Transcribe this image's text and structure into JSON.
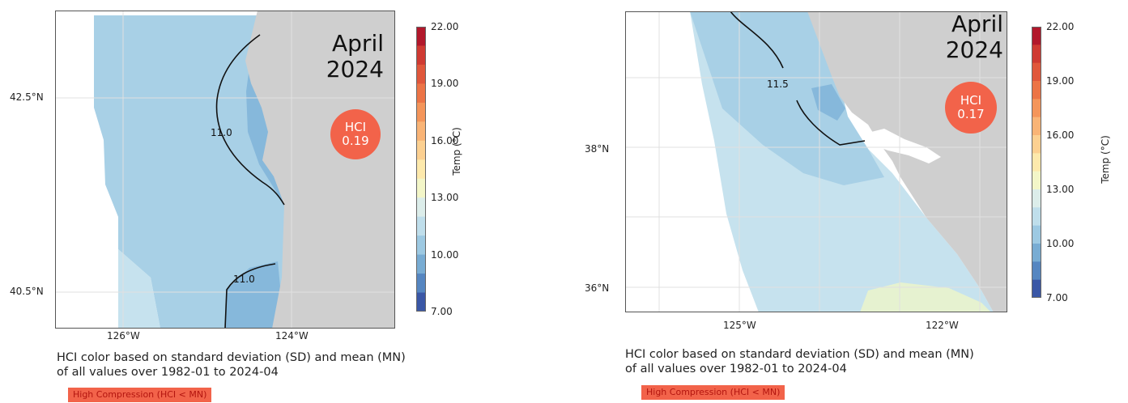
{
  "left_panel": {
    "month": "April",
    "year": "2024",
    "hci_label": "HCI",
    "hci_value": "0.19",
    "lat_labels": [
      "42.5°N",
      "40.5°N"
    ],
    "lon_labels": [
      "126°W",
      "124°W"
    ],
    "contour_labels": [
      "11.0",
      "11.0"
    ],
    "colorbar": {
      "title": "Temp (°C)",
      "ticks": [
        "22.00",
        "19.00",
        "16.00",
        "13.00",
        "10.00",
        "7.00"
      ],
      "min": 7,
      "max": 22
    },
    "caption_line1": "HCI color based on standard deviation (SD) and mean (MN)",
    "caption_line2": "of all values over 1982-01 to 2024-04",
    "legend_label": "High Compression (HCI < MN)"
  },
  "right_panel": {
    "month": "April",
    "year": "2024",
    "hci_label": "HCI",
    "hci_value": "0.17",
    "lat_labels": [
      "38°N",
      "36°N"
    ],
    "lon_labels": [
      "125°W",
      "122°W"
    ],
    "contour_labels": [
      "11.5"
    ],
    "colorbar": {
      "title": "Temp (°C)",
      "ticks": [
        "22.00",
        "19.00",
        "16.00",
        "13.00",
        "10.00",
        "7.00"
      ],
      "min": 7,
      "max": 22
    },
    "caption_line1": "HCI color based on standard deviation (SD) and mean (MN)",
    "caption_line2": "of all values over 1982-01 to 2024-04",
    "legend_label": "High Compression (HCI < MN)"
  },
  "colors": {
    "land": "#cfcfcf",
    "sea_light": "#c6e2ee",
    "sea_mid": "#a8d0e6",
    "sea_dark": "#86b8db",
    "sea_warm": "#e6f2d0",
    "hci_badge": "#f2634a"
  }
}
